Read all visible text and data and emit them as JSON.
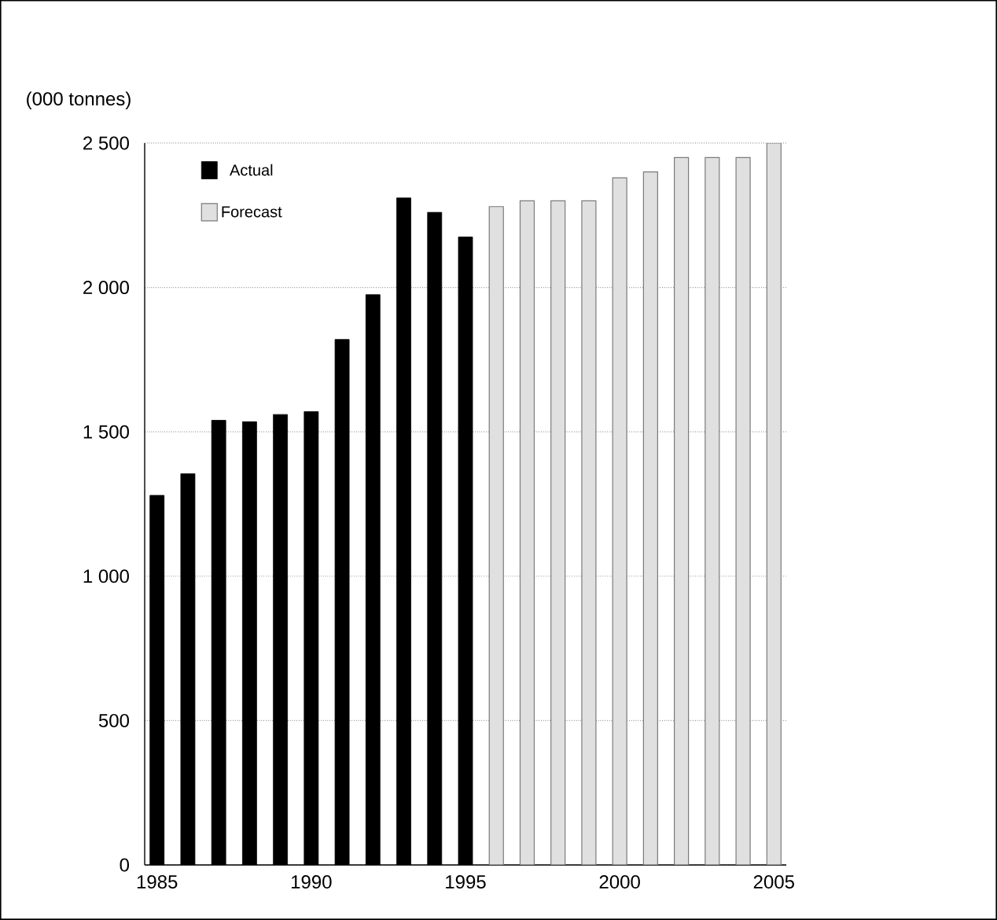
{
  "chart_data": {
    "type": "bar",
    "ylabel": "(000 tonnes)",
    "xlim": [
      1984.6,
      2005.4
    ],
    "xticks": [
      1985,
      1990,
      1995,
      2000,
      2005
    ],
    "ylim": [
      0,
      2500
    ],
    "yticks": [
      0,
      500,
      {
        "value": 1000,
        "label": "1 000"
      },
      {
        "value": 1500,
        "label": "1 500"
      },
      {
        "value": 2000,
        "label": "2 000"
      },
      {
        "value": 2500,
        "label": "2 500"
      }
    ],
    "grid": "y",
    "legend": "top left",
    "series": [
      {
        "name": "Actual",
        "color": "#000000",
        "x": [
          1985,
          1986,
          1987,
          1988,
          1989,
          1990,
          1991,
          1992,
          1993,
          1994,
          1995
        ],
        "values": [
          1280,
          1355,
          1540,
          1535,
          1560,
          1570,
          1820,
          1975,
          2310,
          2260,
          2175
        ]
      },
      {
        "name": "Forecast",
        "color": "#e0e0e0",
        "x": [
          1996,
          1997,
          1998,
          1999,
          2000,
          2001,
          2002,
          2003,
          2004,
          2005
        ],
        "values": [
          2280,
          2300,
          2300,
          2300,
          2380,
          2400,
          2450,
          2450,
          2450,
          2500
        ]
      }
    ]
  }
}
